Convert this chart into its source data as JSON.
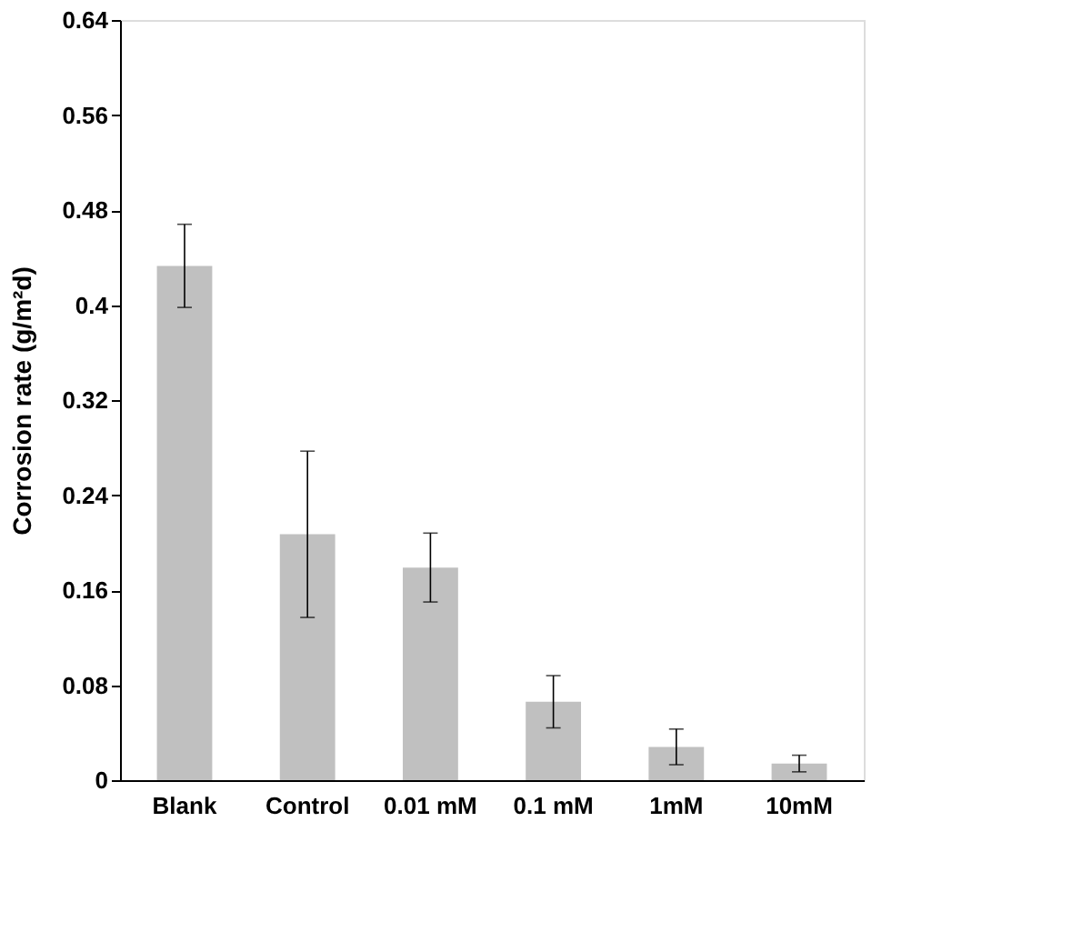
{
  "chart_data": {
    "type": "bar",
    "ylabel": "Corrosion rate (g/m²d)",
    "categories": [
      "Blank",
      "Control",
      "0.01 mM",
      "0.1 mM",
      "1mM",
      "10mM"
    ],
    "values": [
      0.433,
      0.207,
      0.179,
      0.066,
      0.028,
      0.014
    ],
    "errors": [
      0.035,
      0.07,
      0.029,
      0.022,
      0.015,
      0.007
    ],
    "color": "#c0c0c0",
    "ylim": [
      0,
      0.64
    ],
    "yticks": [
      0,
      0.08,
      0.16,
      0.24,
      0.32,
      0.4,
      0.48,
      0.56,
      0.64
    ],
    "grid": false
  }
}
